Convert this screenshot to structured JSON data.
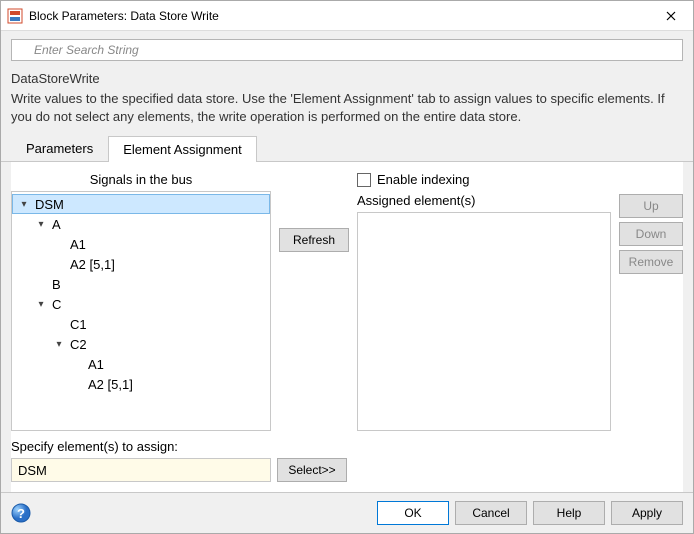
{
  "window": {
    "title": "Block Parameters: Data Store Write"
  },
  "search": {
    "placeholder": "Enter Search String"
  },
  "block_type": "DataStoreWrite",
  "description": "Write values to the specified data store. Use the 'Element Assignment' tab to assign values to specific elements. If you do not select any elements, the write operation is performed on the entire data store.",
  "tabs": {
    "parameters": "Parameters",
    "element_assignment": "Element Assignment",
    "active_index": 1
  },
  "left": {
    "signals_label": "Signals in the bus",
    "tree": [
      {
        "indent": 0,
        "expand": "down",
        "label": "DSM",
        "selected": true
      },
      {
        "indent": 1,
        "expand": "down",
        "label": "A"
      },
      {
        "indent": 2,
        "expand": "",
        "label": "A1"
      },
      {
        "indent": 2,
        "expand": "",
        "label": "A2 [5,1]"
      },
      {
        "indent": 1,
        "expand": "",
        "label": "B"
      },
      {
        "indent": 1,
        "expand": "down",
        "label": "C"
      },
      {
        "indent": 2,
        "expand": "",
        "label": "C1"
      },
      {
        "indent": 2,
        "expand": "down",
        "label": "C2"
      },
      {
        "indent": 3,
        "expand": "",
        "label": "A1"
      },
      {
        "indent": 3,
        "expand": "",
        "label": "A2 [5,1]"
      }
    ]
  },
  "mid": {
    "refresh_label": "Refresh"
  },
  "right": {
    "enable_indexing_label": "Enable indexing",
    "enable_indexing_checked": false,
    "assigned_label": "Assigned element(s)",
    "up_label": "Up",
    "down_label": "Down",
    "remove_label": "Remove"
  },
  "specify": {
    "label": "Specify element(s) to assign:",
    "value": "DSM",
    "select_label": "Select>>"
  },
  "footer": {
    "ok": "OK",
    "cancel": "Cancel",
    "help": "Help",
    "apply": "Apply"
  },
  "colors": {
    "selected_row_bg": "#cde8ff",
    "selected_row_border": "#7ab8e8",
    "input_highlight_bg": "#fffbe8",
    "primary_border": "#0078d7"
  }
}
